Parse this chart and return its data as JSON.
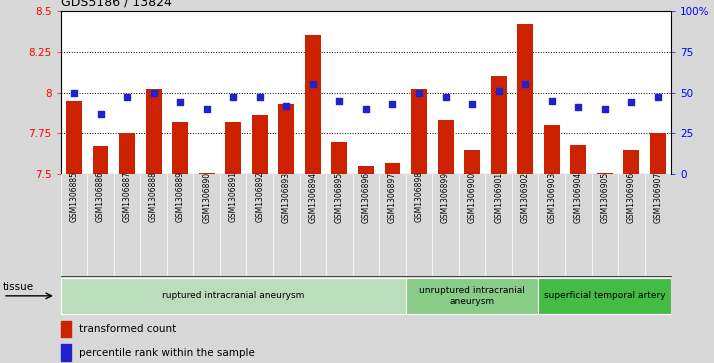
{
  "title": "GDS5186 / 13824",
  "samples": [
    "GSM1306885",
    "GSM1306886",
    "GSM1306887",
    "GSM1306888",
    "GSM1306889",
    "GSM1306890",
    "GSM1306891",
    "GSM1306892",
    "GSM1306893",
    "GSM1306894",
    "GSM1306895",
    "GSM1306896",
    "GSM1306897",
    "GSM1306898",
    "GSM1306899",
    "GSM1306900",
    "GSM1306901",
    "GSM1306902",
    "GSM1306903",
    "GSM1306904",
    "GSM1306905",
    "GSM1306906",
    "GSM1306907"
  ],
  "bar_values": [
    7.95,
    7.67,
    7.75,
    8.02,
    7.82,
    7.51,
    7.82,
    7.86,
    7.93,
    8.35,
    7.7,
    7.55,
    7.57,
    8.02,
    7.83,
    7.65,
    8.1,
    8.42,
    7.8,
    7.68,
    7.51,
    7.65,
    7.75
  ],
  "dot_values": [
    50,
    37,
    47,
    50,
    44,
    40,
    47,
    47,
    42,
    55,
    45,
    40,
    43,
    50,
    47,
    43,
    51,
    55,
    45,
    41,
    40,
    44,
    47
  ],
  "ylim_left": [
    7.5,
    8.5
  ],
  "ylim_right": [
    0,
    100
  ],
  "yticks_left": [
    7.5,
    7.75,
    8.0,
    8.25,
    8.5
  ],
  "ytick_labels_left": [
    "7.5",
    "7.75",
    "8",
    "8.25",
    "8.5"
  ],
  "yticks_right": [
    0,
    25,
    50,
    75,
    100
  ],
  "ytick_labels_right": [
    "0",
    "25",
    "50",
    "75",
    "100%"
  ],
  "grid_lines": [
    7.75,
    8.0,
    8.25
  ],
  "bar_color": "#cc2200",
  "dot_color": "#2222cc",
  "bg_color": "#d8d8d8",
  "plot_bg": "#ffffff",
  "groups": [
    {
      "label": "ruptured intracranial aneurysm",
      "start": 0,
      "end": 13,
      "color": "#bbddbb"
    },
    {
      "label": "unruptured intracranial\naneurysm",
      "start": 13,
      "end": 18,
      "color": "#88cc88"
    },
    {
      "label": "superficial temporal artery",
      "start": 18,
      "end": 23,
      "color": "#44bb44"
    }
  ],
  "tissue_label": "tissue",
  "legend_bar_label": "transformed count",
  "legend_dot_label": "percentile rank within the sample",
  "bar_width": 0.6
}
